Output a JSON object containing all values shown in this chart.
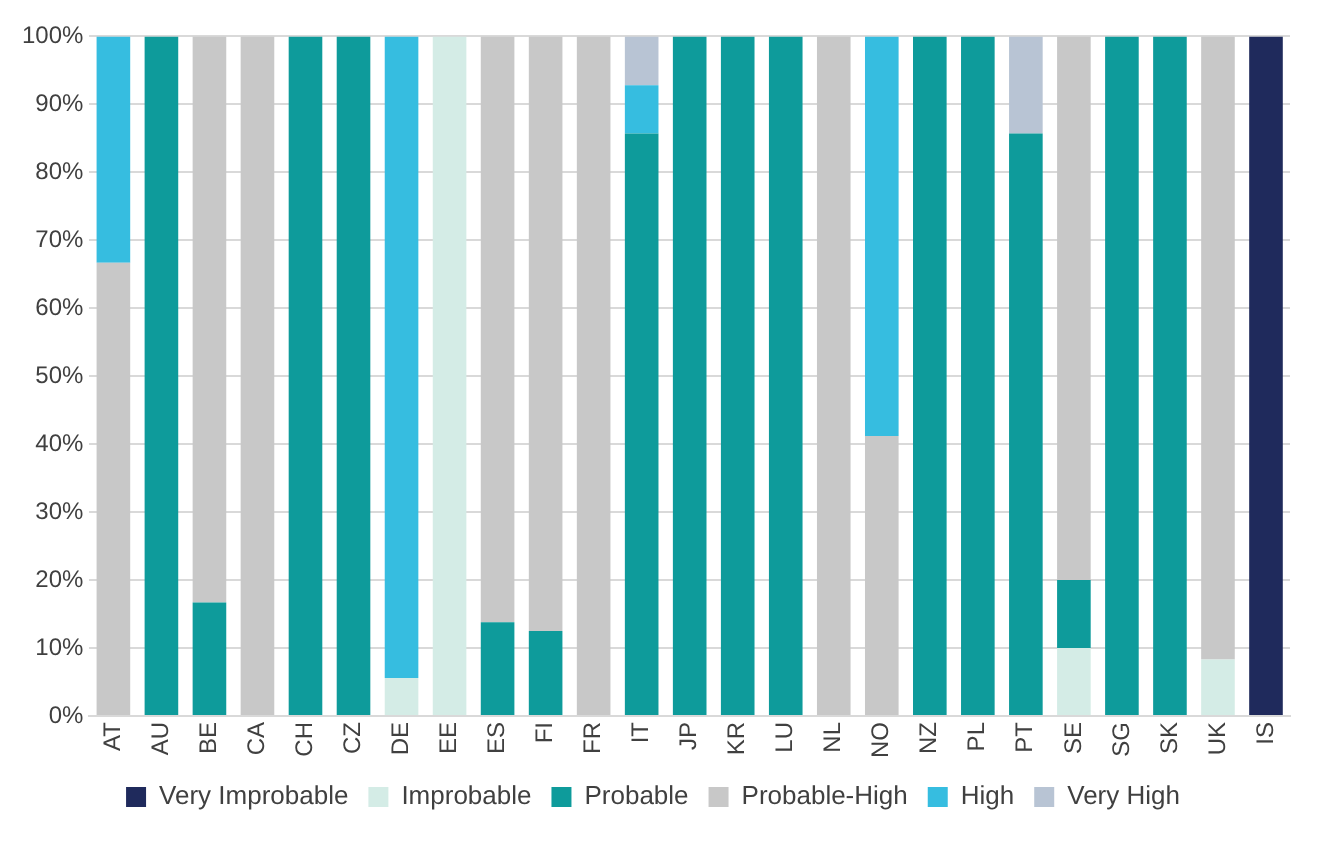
{
  "chart_data": {
    "type": "bar",
    "stacked": true,
    "categories": [
      "AT",
      "AU",
      "BE",
      "CA",
      "CH",
      "CZ",
      "DE",
      "EE",
      "ES",
      "FI",
      "FR",
      "IT",
      "JP",
      "KR",
      "LU",
      "NL",
      "NO",
      "NZ",
      "PL",
      "PT",
      "SE",
      "SG",
      "SK",
      "UK",
      "IS"
    ],
    "series": [
      {
        "name": "Very Improbable",
        "color": "#1f2a5c",
        "values": [
          0,
          0,
          0,
          0,
          0,
          0,
          0,
          0,
          0,
          0,
          0,
          0,
          0,
          0,
          0,
          0,
          0,
          0,
          0,
          0,
          0,
          0,
          0,
          0,
          100
        ]
      },
      {
        "name": "Improbable",
        "color": "#d4ece6",
        "values": [
          0,
          0,
          0,
          0,
          0,
          0,
          5.6,
          100,
          0,
          0,
          0,
          0,
          0,
          0,
          0,
          0,
          0,
          0,
          0,
          0,
          10,
          0,
          0,
          8.3,
          0
        ]
      },
      {
        "name": "Probable",
        "color": "#0e9b9b",
        "values": [
          0,
          100,
          16.7,
          0,
          100,
          100,
          0,
          0,
          13.8,
          12.5,
          0,
          85.7,
          100,
          100,
          100,
          0,
          0,
          100,
          100,
          85.7,
          10,
          100,
          100,
          0,
          0
        ]
      },
      {
        "name": "Probable-High",
        "color": "#c8c8c8",
        "values": [
          66.7,
          0,
          83.3,
          100,
          0,
          0,
          0,
          0,
          86.2,
          87.5,
          100,
          0,
          0,
          0,
          0,
          100,
          41.2,
          0,
          0,
          0,
          80,
          0,
          0,
          91.7,
          0
        ]
      },
      {
        "name": "High",
        "color": "#36bde0",
        "values": [
          33.3,
          0,
          0,
          0,
          0,
          0,
          94.4,
          0,
          0,
          0,
          0,
          7.1,
          0,
          0,
          0,
          0,
          58.8,
          0,
          0,
          0,
          0,
          0,
          0,
          0,
          0
        ]
      },
      {
        "name": "Very High",
        "color": "#b8c4d4",
        "values": [
          0,
          0,
          0,
          0,
          0,
          0,
          0,
          0,
          0,
          0,
          0,
          7.2,
          0,
          0,
          0,
          0,
          0,
          0,
          0,
          14.3,
          0,
          0,
          0,
          0,
          0
        ]
      }
    ],
    "ylim": [
      0,
      100
    ],
    "yticks": [
      {
        "value": 0,
        "label": "0%"
      },
      {
        "value": 10,
        "label": "10%"
      },
      {
        "value": 20,
        "label": "20%"
      },
      {
        "value": 30,
        "label": "30%"
      },
      {
        "value": 40,
        "label": "40%"
      },
      {
        "value": 50,
        "label": "50%"
      },
      {
        "value": 60,
        "label": "60%"
      },
      {
        "value": 70,
        "label": "70%"
      },
      {
        "value": 80,
        "label": "80%"
      },
      {
        "value": 90,
        "label": "90%"
      },
      {
        "value": 100,
        "label": "100%"
      }
    ],
    "grid": "y",
    "legend": "bottom"
  }
}
